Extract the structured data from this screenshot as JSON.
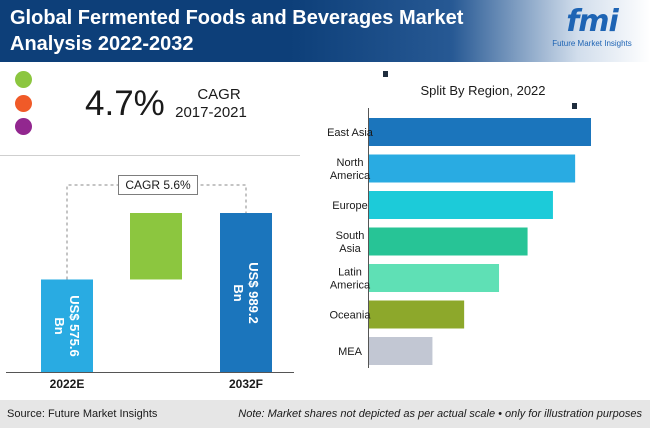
{
  "header": {
    "title": "Global Fermented Foods and Beverages Market Analysis 2022-2032",
    "logo_mark": "fmi",
    "logo_text": "Future Market Insights",
    "background_color": "#0d3f79"
  },
  "legend_dots": [
    {
      "color": "#8cc63f"
    },
    {
      "color": "#f05a28"
    },
    {
      "color": "#92278f"
    }
  ],
  "cagr_summary": {
    "value": "4.7%",
    "label": "CAGR",
    "period": "2017-2021"
  },
  "chart_data": [
    {
      "type": "bar",
      "variant": "waterfall",
      "categories": [
        "2022E",
        "2032F"
      ],
      "values": [
        575.6,
        989.2
      ],
      "value_labels": [
        [
          "US$ 575.6",
          "Bn"
        ],
        [
          "US$ 989.2",
          "Bn"
        ]
      ],
      "increment": 413.6,
      "annotation": "CAGR 5.6%",
      "colors": [
        "#29abe2",
        "#8cc63f",
        "#1b75bc"
      ],
      "ylim": [
        0,
        989.2
      ],
      "grid": false
    },
    {
      "type": "bar",
      "orientation": "horizontal",
      "title": "Split By Region, 2022",
      "categories": [
        [
          "East Asia"
        ],
        [
          "North",
          "America"
        ],
        [
          "Europe"
        ],
        [
          "South",
          "Asia"
        ],
        [
          "Latin",
          "America"
        ],
        [
          "Oceania"
        ],
        [
          "MEA"
        ]
      ],
      "values": [
        7,
        6.5,
        5.8,
        5,
        4.1,
        3,
        2
      ],
      "colors": [
        "#1b75bc",
        "#29abe2",
        "#1ccbd9",
        "#27c496",
        "#5fe0b5",
        "#8da82b",
        "#c2c7d3"
      ],
      "grid": false,
      "legend": "none"
    }
  ],
  "footer": {
    "source": "Source: Future Market Insights",
    "note": "Note: Market shares not depicted as per actual scale • only for illustration purposes"
  }
}
